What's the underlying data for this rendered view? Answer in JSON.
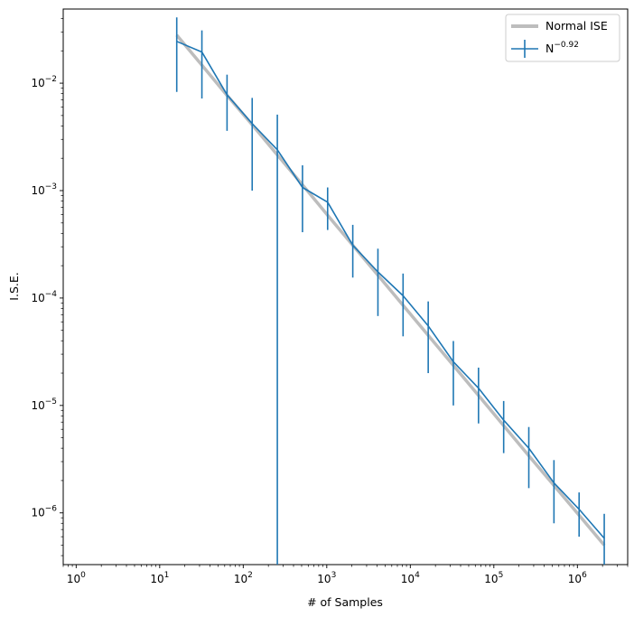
{
  "chart_data": {
    "type": "line",
    "title": "",
    "xlabel": "# of Samples",
    "ylabel": "I.S.E.",
    "xscale": "log",
    "yscale": "log",
    "xlim": [
      0.7,
      4000000
    ],
    "ylim": [
      3.3e-07,
      0.049
    ],
    "grid": false,
    "legend_position": "top-right",
    "x_ticks": [
      {
        "value": 1,
        "base": "10",
        "exp": "0"
      },
      {
        "value": 10,
        "base": "10",
        "exp": "1"
      },
      {
        "value": 100,
        "base": "10",
        "exp": "2"
      },
      {
        "value": 1000,
        "base": "10",
        "exp": "3"
      },
      {
        "value": 10000,
        "base": "10",
        "exp": "4"
      },
      {
        "value": 100000,
        "base": "10",
        "exp": "5"
      },
      {
        "value": 1000000,
        "base": "10",
        "exp": "6"
      }
    ],
    "y_ticks": [
      {
        "value": 1e-06,
        "base": "10",
        "exp": "−6"
      },
      {
        "value": 1e-05,
        "base": "10",
        "exp": "−5"
      },
      {
        "value": 0.0001,
        "base": "10",
        "exp": "−4"
      },
      {
        "value": 0.001,
        "base": "10",
        "exp": "−3"
      },
      {
        "value": 0.01,
        "base": "10",
        "exp": "−2"
      }
    ],
    "x": [
      16,
      32,
      64,
      128,
      256,
      512,
      1024,
      2048,
      4096,
      8192,
      16384,
      32768,
      65536,
      131072,
      262144,
      524288,
      1048576,
      2097152
    ],
    "series": [
      {
        "name": "Normal ISE",
        "color": "#bdbdbd",
        "style": "line",
        "values": [
          0.028,
          0.0147,
          0.0077,
          0.0041,
          0.00215,
          0.00113,
          0.00059,
          0.00031,
          0.000163,
          8.55e-05,
          4.49e-05,
          2.36e-05,
          1.24e-05,
          6.5e-06,
          3.4e-06,
          1.8e-06,
          9.5e-07,
          5e-07
        ]
      },
      {
        "name": "N",
        "name_sup": "−0.92",
        "color": "#1f77b4",
        "style": "errorbar",
        "values": [
          0.0245,
          0.0195,
          0.0078,
          0.0042,
          0.0024,
          0.00107,
          0.00078,
          0.00031,
          0.000175,
          0.000105,
          5.5e-05,
          2.55e-05,
          1.45e-05,
          7.3e-06,
          4e-06,
          1.9e-06,
          1.08e-06,
          5.8e-07
        ],
        "err_low": [
          0.0083,
          0.0072,
          0.0036,
          0.001,
          1e-07,
          0.00041,
          0.00043,
          0.000155,
          6.8e-05,
          4.4e-05,
          2e-05,
          1e-05,
          6.8e-06,
          3.6e-06,
          1.7e-06,
          8e-07,
          6e-07,
          3.3e-07
        ],
        "err_high": [
          0.041,
          0.031,
          0.012,
          0.0073,
          0.0051,
          0.00172,
          0.00107,
          0.00048,
          0.000288,
          0.000169,
          9.3e-05,
          3.98e-05,
          2.25e-05,
          1.1e-05,
          6.3e-06,
          3.1e-06,
          1.55e-06,
          9.8e-07
        ]
      }
    ]
  }
}
